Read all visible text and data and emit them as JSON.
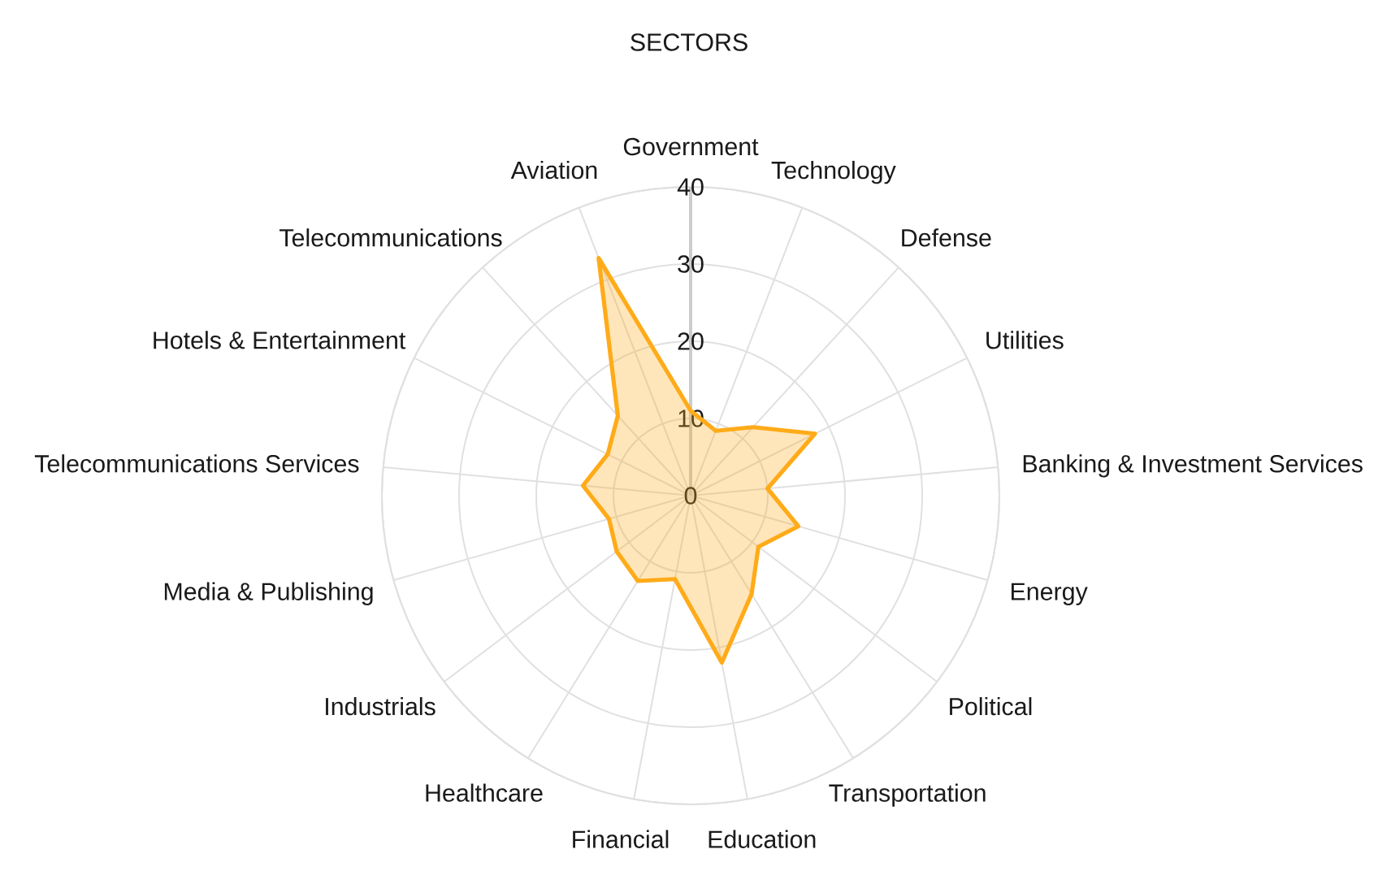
{
  "chart_data": {
    "type": "radar",
    "title": "SECTORS",
    "categories": [
      "Government",
      "Technology",
      "Defense",
      "Utilities",
      "Banking & Investment Services",
      "Energy",
      "Political",
      "Transportation",
      "Education",
      "Financial",
      "Healthcare",
      "Industrials",
      "Media & Publishing",
      "Telecommunications Services",
      "Hotels & Entertainment",
      "Telecommunications",
      "Aviation"
    ],
    "series": [
      {
        "color": "#ffab19",
        "values": [
          11,
          9,
          12,
          18,
          10,
          14.5,
          11,
          15,
          22,
          11,
          13,
          12,
          11,
          14,
          12,
          14,
          33
        ]
      }
    ],
    "ylim": [
      0,
      40
    ],
    "yticks": [
      0,
      10,
      20,
      30,
      40
    ],
    "grid": true
  }
}
